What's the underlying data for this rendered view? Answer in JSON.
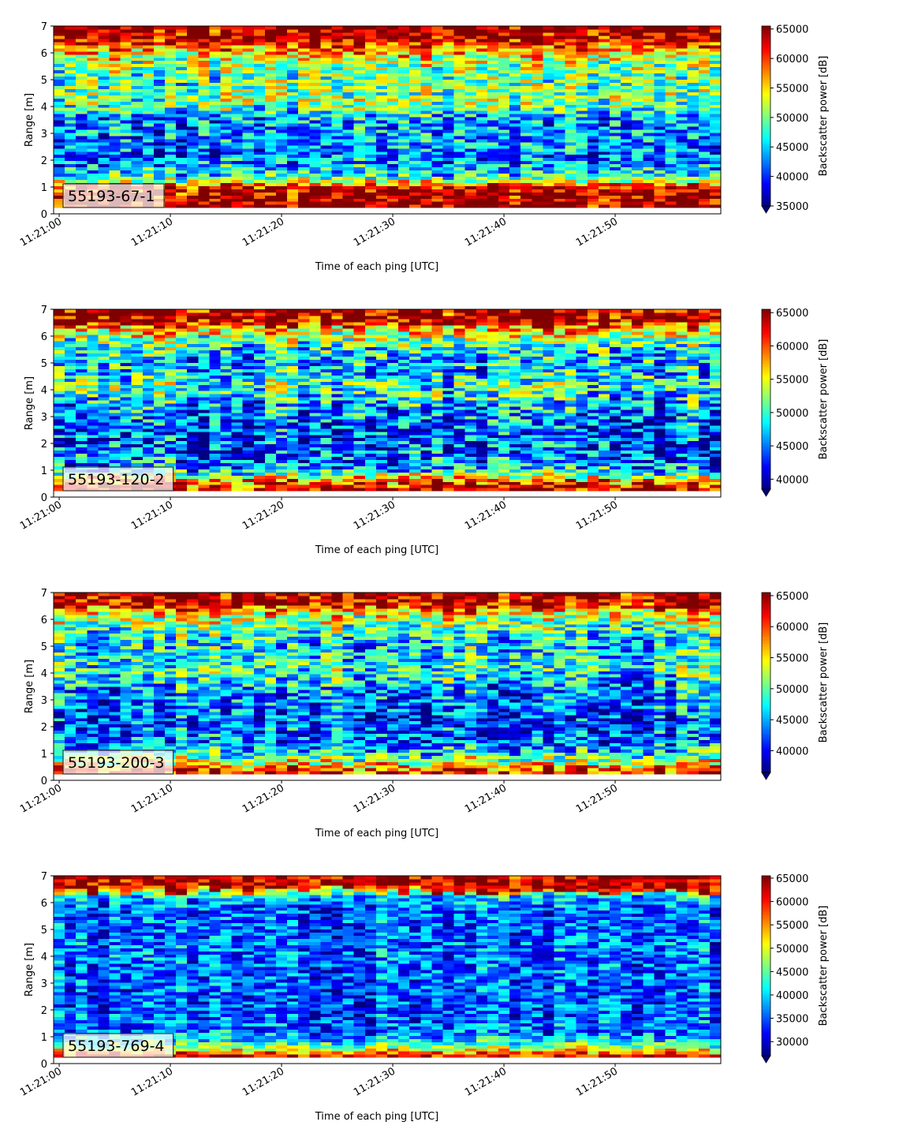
{
  "chart_data": [
    {
      "type": "heatmap",
      "label": "55193-67-1",
      "xlabel": "Time of each ping [UTC]",
      "ylabel": "Range [m]",
      "xlim": [
        "11:20:59.5",
        "11:21:59.5"
      ],
      "ylim": [
        0,
        7
      ],
      "xticks": [
        "11:21:00",
        "11:21:10",
        "11:21:20",
        "11:21:30",
        "11:21:40",
        "11:21:50"
      ],
      "yticks": [
        0,
        1,
        2,
        3,
        4,
        5,
        6,
        7
      ],
      "colorbar": {
        "label": "Backscatter power [dB]",
        "vmin": 35000,
        "vmax": 65500,
        "ticks": [
          35000,
          40000,
          45000,
          50000,
          55000,
          60000,
          65000
        ],
        "colormap": "jet",
        "extend": "min"
      },
      "profile": {
        "range_m": [
          0.2,
          0.6,
          1.0,
          1.4,
          1.8,
          2.2,
          2.6,
          3.0,
          3.4,
          3.8,
          4.2,
          4.6,
          5.0,
          5.4,
          5.8,
          6.2,
          6.6,
          7.0
        ],
        "typical_power": [
          65000,
          64000,
          62000,
          47000,
          43500,
          41500,
          42500,
          43000,
          42500,
          46000,
          50500,
          49500,
          49000,
          50000,
          53000,
          58000,
          64500,
          65000
        ]
      }
    },
    {
      "type": "heatmap",
      "label": "55193-120-2",
      "xlabel": "Time of each ping [UTC]",
      "ylabel": "Range [m]",
      "xlim": [
        "11:20:59.5",
        "11:21:59.5"
      ],
      "ylim": [
        0,
        7
      ],
      "xticks": [
        "11:21:00",
        "11:21:10",
        "11:21:20",
        "11:21:30",
        "11:21:40",
        "11:21:50"
      ],
      "yticks": [
        0,
        1,
        2,
        3,
        4,
        5,
        6,
        7
      ],
      "colorbar": {
        "label": "Backscatter power [dB]",
        "vmin": 38500,
        "vmax": 65500,
        "ticks": [
          40000,
          45000,
          50000,
          55000,
          60000,
          65000
        ],
        "colormap": "jet",
        "extend": "min"
      },
      "profile": {
        "range_m": [
          0.2,
          0.6,
          1.0,
          1.4,
          1.8,
          2.2,
          2.6,
          3.0,
          3.4,
          3.8,
          4.2,
          4.6,
          5.0,
          5.4,
          5.8,
          6.2,
          6.6,
          7.0
        ],
        "typical_power": [
          65000,
          60000,
          48000,
          44500,
          44000,
          43500,
          44000,
          45000,
          46000,
          48500,
          50000,
          47500,
          47000,
          48500,
          51000,
          55500,
          64000,
          65000
        ]
      }
    },
    {
      "type": "heatmap",
      "label": "55193-200-3",
      "xlabel": "Time of each ping [UTC]",
      "ylabel": "Range [m]",
      "xlim": [
        "11:20:59.5",
        "11:21:59.5"
      ],
      "ylim": [
        0,
        7
      ],
      "xticks": [
        "11:21:00",
        "11:21:10",
        "11:21:20",
        "11:21:30",
        "11:21:40",
        "11:21:50"
      ],
      "yticks": [
        0,
        1,
        2,
        3,
        4,
        5,
        6,
        7
      ],
      "colorbar": {
        "label": "Backscatter power [dB]",
        "vmin": 36500,
        "vmax": 65500,
        "ticks": [
          40000,
          45000,
          50000,
          55000,
          60000,
          65000
        ],
        "colormap": "jet",
        "extend": "min"
      },
      "profile": {
        "range_m": [
          0.2,
          0.6,
          1.0,
          1.4,
          1.8,
          2.2,
          2.6,
          3.0,
          3.4,
          3.8,
          4.2,
          4.6,
          5.0,
          5.4,
          5.8,
          6.2,
          6.6,
          7.0
        ],
        "typical_power": [
          64000,
          56000,
          47500,
          43500,
          42500,
          42000,
          42500,
          43500,
          44500,
          47000,
          48500,
          47000,
          46500,
          48000,
          50500,
          54500,
          63500,
          65000
        ]
      }
    },
    {
      "type": "heatmap",
      "label": "55193-769-4",
      "xlabel": "Time of each ping [UTC]",
      "ylabel": "Range [m]",
      "xlim": [
        "11:20:59.5",
        "11:21:59.5"
      ],
      "ylim": [
        0,
        7
      ],
      "xticks": [
        "11:21:00",
        "11:21:10",
        "11:21:20",
        "11:21:30",
        "11:21:40",
        "11:21:50"
      ],
      "yticks": [
        0,
        1,
        2,
        3,
        4,
        5,
        6,
        7
      ],
      "colorbar": {
        "label": "Backscatter power [dB]",
        "vmin": 27000,
        "vmax": 65500,
        "ticks": [
          30000,
          35000,
          40000,
          45000,
          50000,
          55000,
          60000,
          65000
        ],
        "colormap": "jet",
        "extend": "min"
      },
      "profile": {
        "range_m": [
          0.2,
          0.6,
          1.0,
          1.4,
          1.8,
          2.2,
          2.6,
          3.0,
          3.4,
          3.8,
          4.2,
          4.6,
          5.0,
          5.4,
          5.8,
          6.2,
          6.6,
          7.0
        ],
        "typical_power": [
          64000,
          48000,
          37500,
          35500,
          34500,
          34000,
          34000,
          34500,
          35000,
          35500,
          36000,
          35500,
          35000,
          35000,
          35500,
          38000,
          56000,
          60000
        ]
      }
    }
  ]
}
